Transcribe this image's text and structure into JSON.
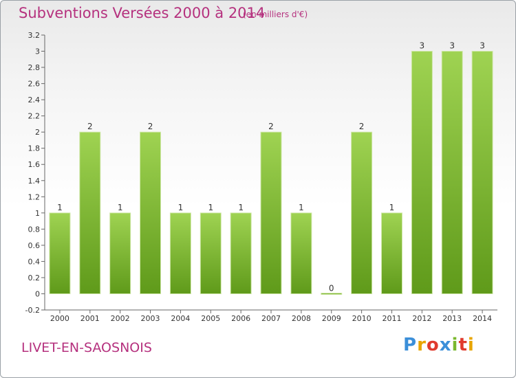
{
  "title": "Subventions Versées 2000 à 2014",
  "unit": "(en milliers d'€)",
  "commune": "LIVET-EN-SAOSNOIS",
  "logo": {
    "letters": [
      "P",
      "r",
      "o",
      "x",
      "i",
      "t",
      "i"
    ],
    "colors": [
      "#3b8fd9",
      "#e8a500",
      "#e03b2e",
      "#3b8fd9",
      "#7ab82e",
      "#e03b2e",
      "#e8a500"
    ]
  },
  "colors": {
    "bar": "#8dc63f",
    "bar_dark": "#5f9a1a",
    "accent": "#b5317e"
  },
  "chart_data": {
    "type": "bar",
    "categories": [
      "2000",
      "2001",
      "2002",
      "2003",
      "2004",
      "2005",
      "2006",
      "2007",
      "2008",
      "2009",
      "2010",
      "2011",
      "2012",
      "2013",
      "2014"
    ],
    "values": [
      1,
      2,
      1,
      2,
      1,
      1,
      1,
      2,
      1,
      0,
      2,
      1,
      3,
      3,
      3
    ],
    "value_labels": [
      "1",
      "2",
      "1",
      "2",
      "1",
      "1",
      "1",
      "2",
      "1",
      "0",
      "2",
      "1",
      "3",
      "3",
      "3"
    ],
    "ylim": [
      -0.2,
      3.2
    ],
    "yticks": [
      -0.2,
      0,
      0.2,
      0.4,
      0.6,
      0.8,
      1,
      1.2,
      1.4,
      1.6,
      1.8,
      2,
      2.2,
      2.4,
      2.6,
      2.8,
      3,
      3.2
    ],
    "ytick_labels": [
      "-0.2",
      "0",
      "0.2",
      "0.4",
      "0.6",
      "0.8",
      "1",
      "1.2",
      "1.4",
      "1.6",
      "1.8",
      "2",
      "2.2",
      "2.4",
      "2.6",
      "2.8",
      "3",
      "3.2"
    ],
    "grid": false,
    "legend": false
  }
}
